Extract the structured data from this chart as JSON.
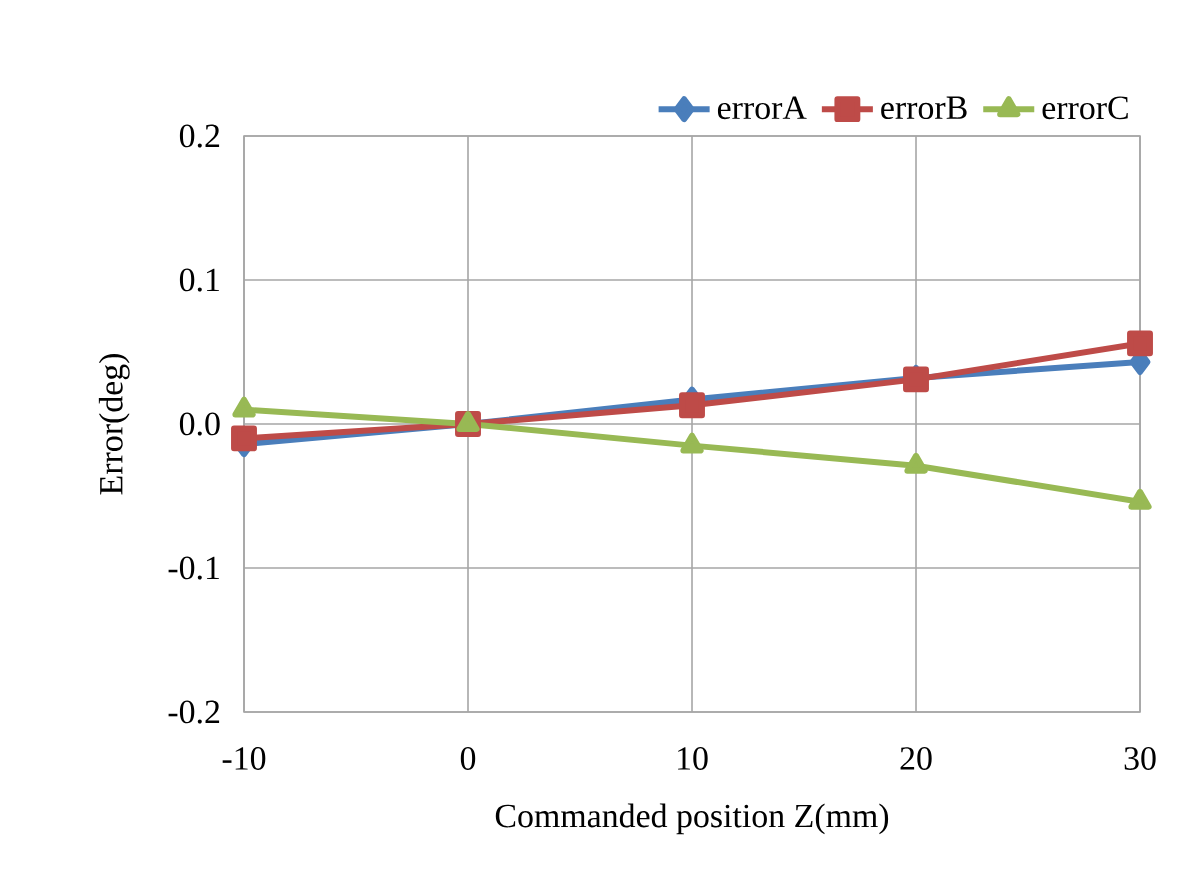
{
  "chart_data": {
    "type": "line",
    "xlabel": "Commanded position Z(mm)",
    "ylabel": "Error(deg)",
    "x": [
      -10,
      0,
      10,
      20,
      30
    ],
    "series": [
      {
        "name": "errorA",
        "color": "#4a7ebb",
        "marker": "diamond",
        "values": [
          -0.014,
          0,
          0.017,
          0.032,
          0.043
        ]
      },
      {
        "name": "errorB",
        "color": "#be4b48",
        "marker": "square",
        "values": [
          -0.01,
          0,
          0.013,
          0.031,
          0.056
        ]
      },
      {
        "name": "errorC",
        "color": "#98b954",
        "marker": "triangle",
        "values": [
          0.01,
          0,
          -0.015,
          -0.029,
          -0.054
        ]
      }
    ],
    "xlim": [
      -10,
      30
    ],
    "xticks": [
      -10,
      0,
      10,
      20,
      30
    ],
    "ylim": [
      -0.2,
      0.2
    ],
    "yticks": [
      {
        "value": -0.2,
        "label": "-0.2"
      },
      {
        "value": -0.1,
        "label": "-0.1"
      },
      {
        "value": 0,
        "label": "0.0"
      },
      {
        "value": 0.1,
        "label": "0.1"
      },
      {
        "value": 0.2,
        "label": "0.2"
      }
    ],
    "grid": true,
    "legend": "top right",
    "line_style": "solid"
  }
}
